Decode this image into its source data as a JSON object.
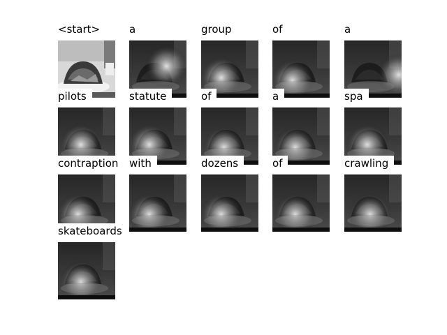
{
  "panels": [
    {
      "word": "<start>",
      "attention": "original",
      "highlight": null
    },
    {
      "word": "a",
      "attention": "map",
      "highlight": [
        0.65,
        0.45
      ]
    },
    {
      "word": "group",
      "attention": "map",
      "highlight": [
        0.35,
        0.65
      ]
    },
    {
      "word": "of",
      "attention": "map",
      "highlight": [
        0.35,
        0.7
      ]
    },
    {
      "word": "a",
      "attention": "map",
      "highlight": [
        0.95,
        0.6
      ]
    },
    {
      "word": "pilots",
      "attention": "map",
      "highlight": [
        0.4,
        0.65
      ]
    },
    {
      "word": "statute",
      "attention": "map",
      "highlight": [
        0.35,
        0.65
      ]
    },
    {
      "word": "of",
      "attention": "map",
      "highlight": [
        0.4,
        0.7
      ]
    },
    {
      "word": "a",
      "attention": "map",
      "highlight": [
        0.4,
        0.7
      ]
    },
    {
      "word": "spa",
      "attention": "map",
      "highlight": [
        0.4,
        0.65
      ]
    },
    {
      "word": "contraption",
      "attention": "map",
      "highlight": [
        0.35,
        0.7
      ]
    },
    {
      "word": "with",
      "attention": "map",
      "highlight": [
        0.35,
        0.7
      ]
    },
    {
      "word": "dozens",
      "attention": "map",
      "highlight": [
        0.35,
        0.7
      ]
    },
    {
      "word": "of",
      "attention": "map",
      "highlight": [
        0.4,
        0.7
      ]
    },
    {
      "word": "crawling",
      "attention": "map",
      "highlight": [
        0.45,
        0.7
      ]
    },
    {
      "word": "skateboards",
      "attention": "map",
      "highlight": [
        0.4,
        0.7
      ]
    }
  ]
}
